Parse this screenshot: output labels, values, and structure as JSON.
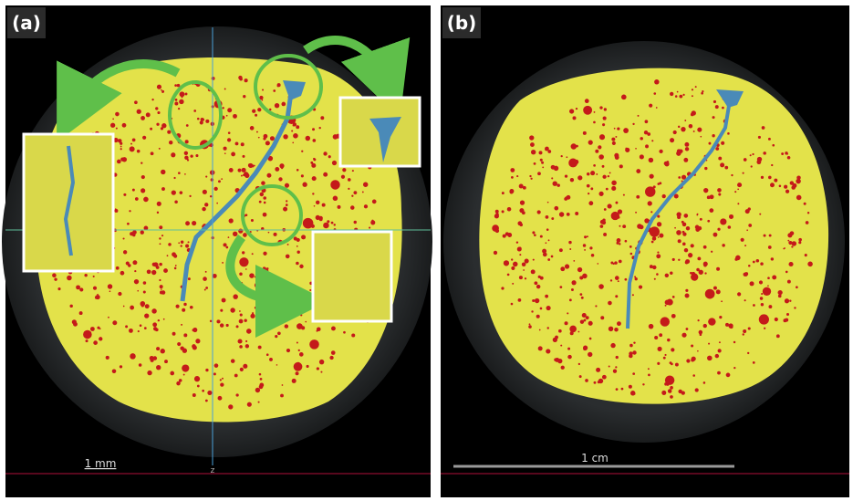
{
  "panels": [
    {
      "label": "(a)",
      "scale_bar": "1 mm",
      "axis_label": "z"
    },
    {
      "label": "(b)",
      "scale_bar": "1 cm"
    }
  ]
}
